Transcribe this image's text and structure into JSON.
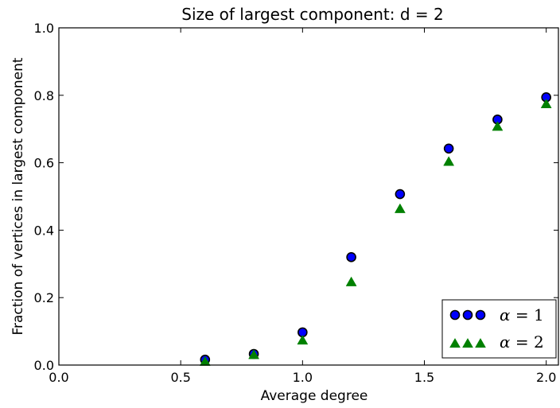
{
  "chart_data": {
    "type": "scatter",
    "title": "Size of largest component: d = 2",
    "xlabel": "Average degree",
    "ylabel": "Fraction of vertices in largest component",
    "xlim": [
      0.0,
      2.05
    ],
    "ylim": [
      0.0,
      1.0
    ],
    "xticks": [
      "0.0",
      "0.5",
      "1.0",
      "1.5",
      "2.0"
    ],
    "yticks": [
      "0.0",
      "0.2",
      "0.4",
      "0.6",
      "0.8",
      "1.0"
    ],
    "grid": false,
    "legend_placement": "lower-right",
    "series": [
      {
        "name": "α = 1",
        "symbol": "α",
        "rest": " = 1",
        "marker": "circle",
        "color": "#0000ff",
        "x": [
          0.6,
          0.8,
          1.0,
          1.2,
          1.4,
          1.6,
          1.8,
          2.0
        ],
        "y": [
          0.016,
          0.033,
          0.097,
          0.32,
          0.507,
          0.642,
          0.728,
          0.794
        ]
      },
      {
        "name": "α = 2",
        "symbol": "α",
        "rest": " = 2",
        "marker": "triangle",
        "color": "#008000",
        "x": [
          0.6,
          0.8,
          1.0,
          1.2,
          1.4,
          1.6,
          1.8,
          2.0
        ],
        "y": [
          0.01,
          0.03,
          0.073,
          0.246,
          0.463,
          0.603,
          0.707,
          0.774
        ]
      }
    ]
  }
}
